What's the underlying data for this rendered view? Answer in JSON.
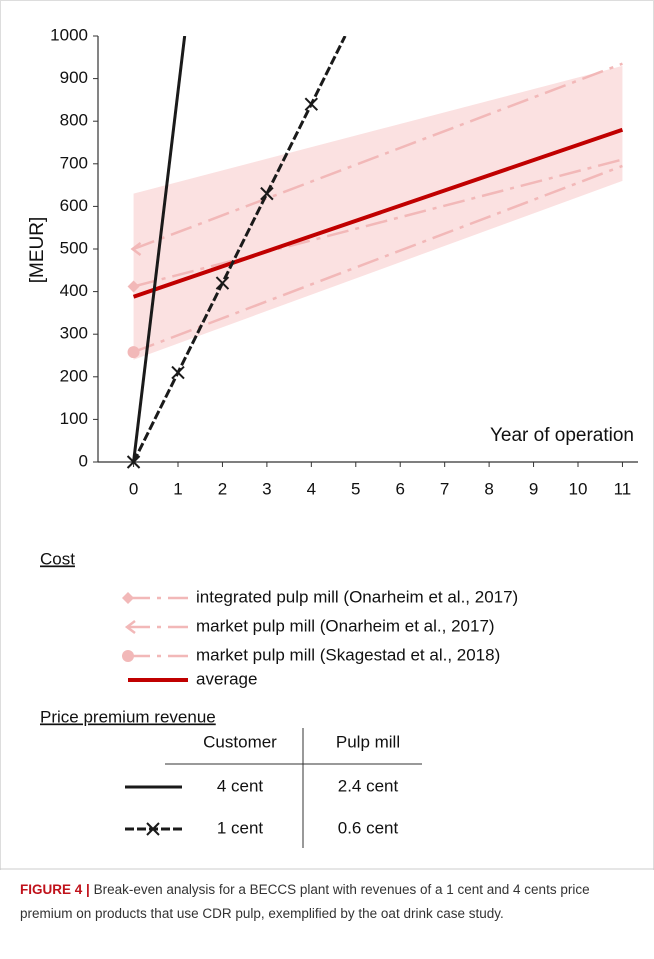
{
  "chart_data": {
    "type": "line",
    "ylabel": "[MEUR]",
    "annotation": "Year of operation",
    "xlim": [
      -0.8,
      11.35
    ],
    "ylim": [
      0,
      1000
    ],
    "xticks": [
      0,
      1,
      2,
      3,
      4,
      5,
      6,
      7,
      8,
      9,
      10,
      11
    ],
    "yticks": [
      0,
      100,
      200,
      300,
      400,
      500,
      600,
      700,
      800,
      900,
      1000
    ],
    "band": {
      "x": [
        0,
        11
      ],
      "lower": [
        240,
        660
      ],
      "upper": [
        630,
        930
      ],
      "color": "#fbe1e1"
    },
    "cost_heading": "Cost",
    "cost_series": [
      {
        "name": "integrated pulp mill (Onarheim et al., 2017)",
        "color": "#f2b8b8",
        "marker": "diamond",
        "x": [
          0,
          11
        ],
        "values": [
          412,
          710
        ]
      },
      {
        "name": "market pulp mill (Onarheim et al., 2017)",
        "color": "#f2b8b8",
        "marker": "arrow",
        "x": [
          0,
          11
        ],
        "values": [
          500,
          935
        ]
      },
      {
        "name": "market pulp mill (Skagestad et al., 2018)",
        "color": "#f2b8b8",
        "marker": "circle",
        "x": [
          0,
          11
        ],
        "values": [
          258,
          695
        ]
      },
      {
        "name": "average",
        "color": "#c00000",
        "marker": "none",
        "x": [
          0,
          11
        ],
        "values": [
          388,
          780
        ]
      }
    ],
    "revenue_heading": "Price premium revenue",
    "revenue_columns": [
      "Customer",
      "Pulp mill"
    ],
    "revenue_series": [
      {
        "name": "4 cent",
        "pulp_mill": "2.4 cent",
        "color": "#1a1a1a",
        "marker": "none",
        "x": [
          0,
          1.15
        ],
        "values": [
          0,
          1000
        ]
      },
      {
        "name": "1 cent",
        "pulp_mill": "0.6 cent",
        "color": "#1a1a1a",
        "marker": "x",
        "x": [
          0,
          1,
          2,
          3,
          4,
          4.76
        ],
        "values": [
          0,
          210,
          420,
          630,
          840,
          1000
        ]
      }
    ]
  },
  "caption": {
    "label": "FIGURE 4 |",
    "text": "Break-even analysis for a BECCS plant with revenues of a 1 cent and 4 cents price premium on products that use CDR pulp, exemplified by the oat drink case study."
  }
}
